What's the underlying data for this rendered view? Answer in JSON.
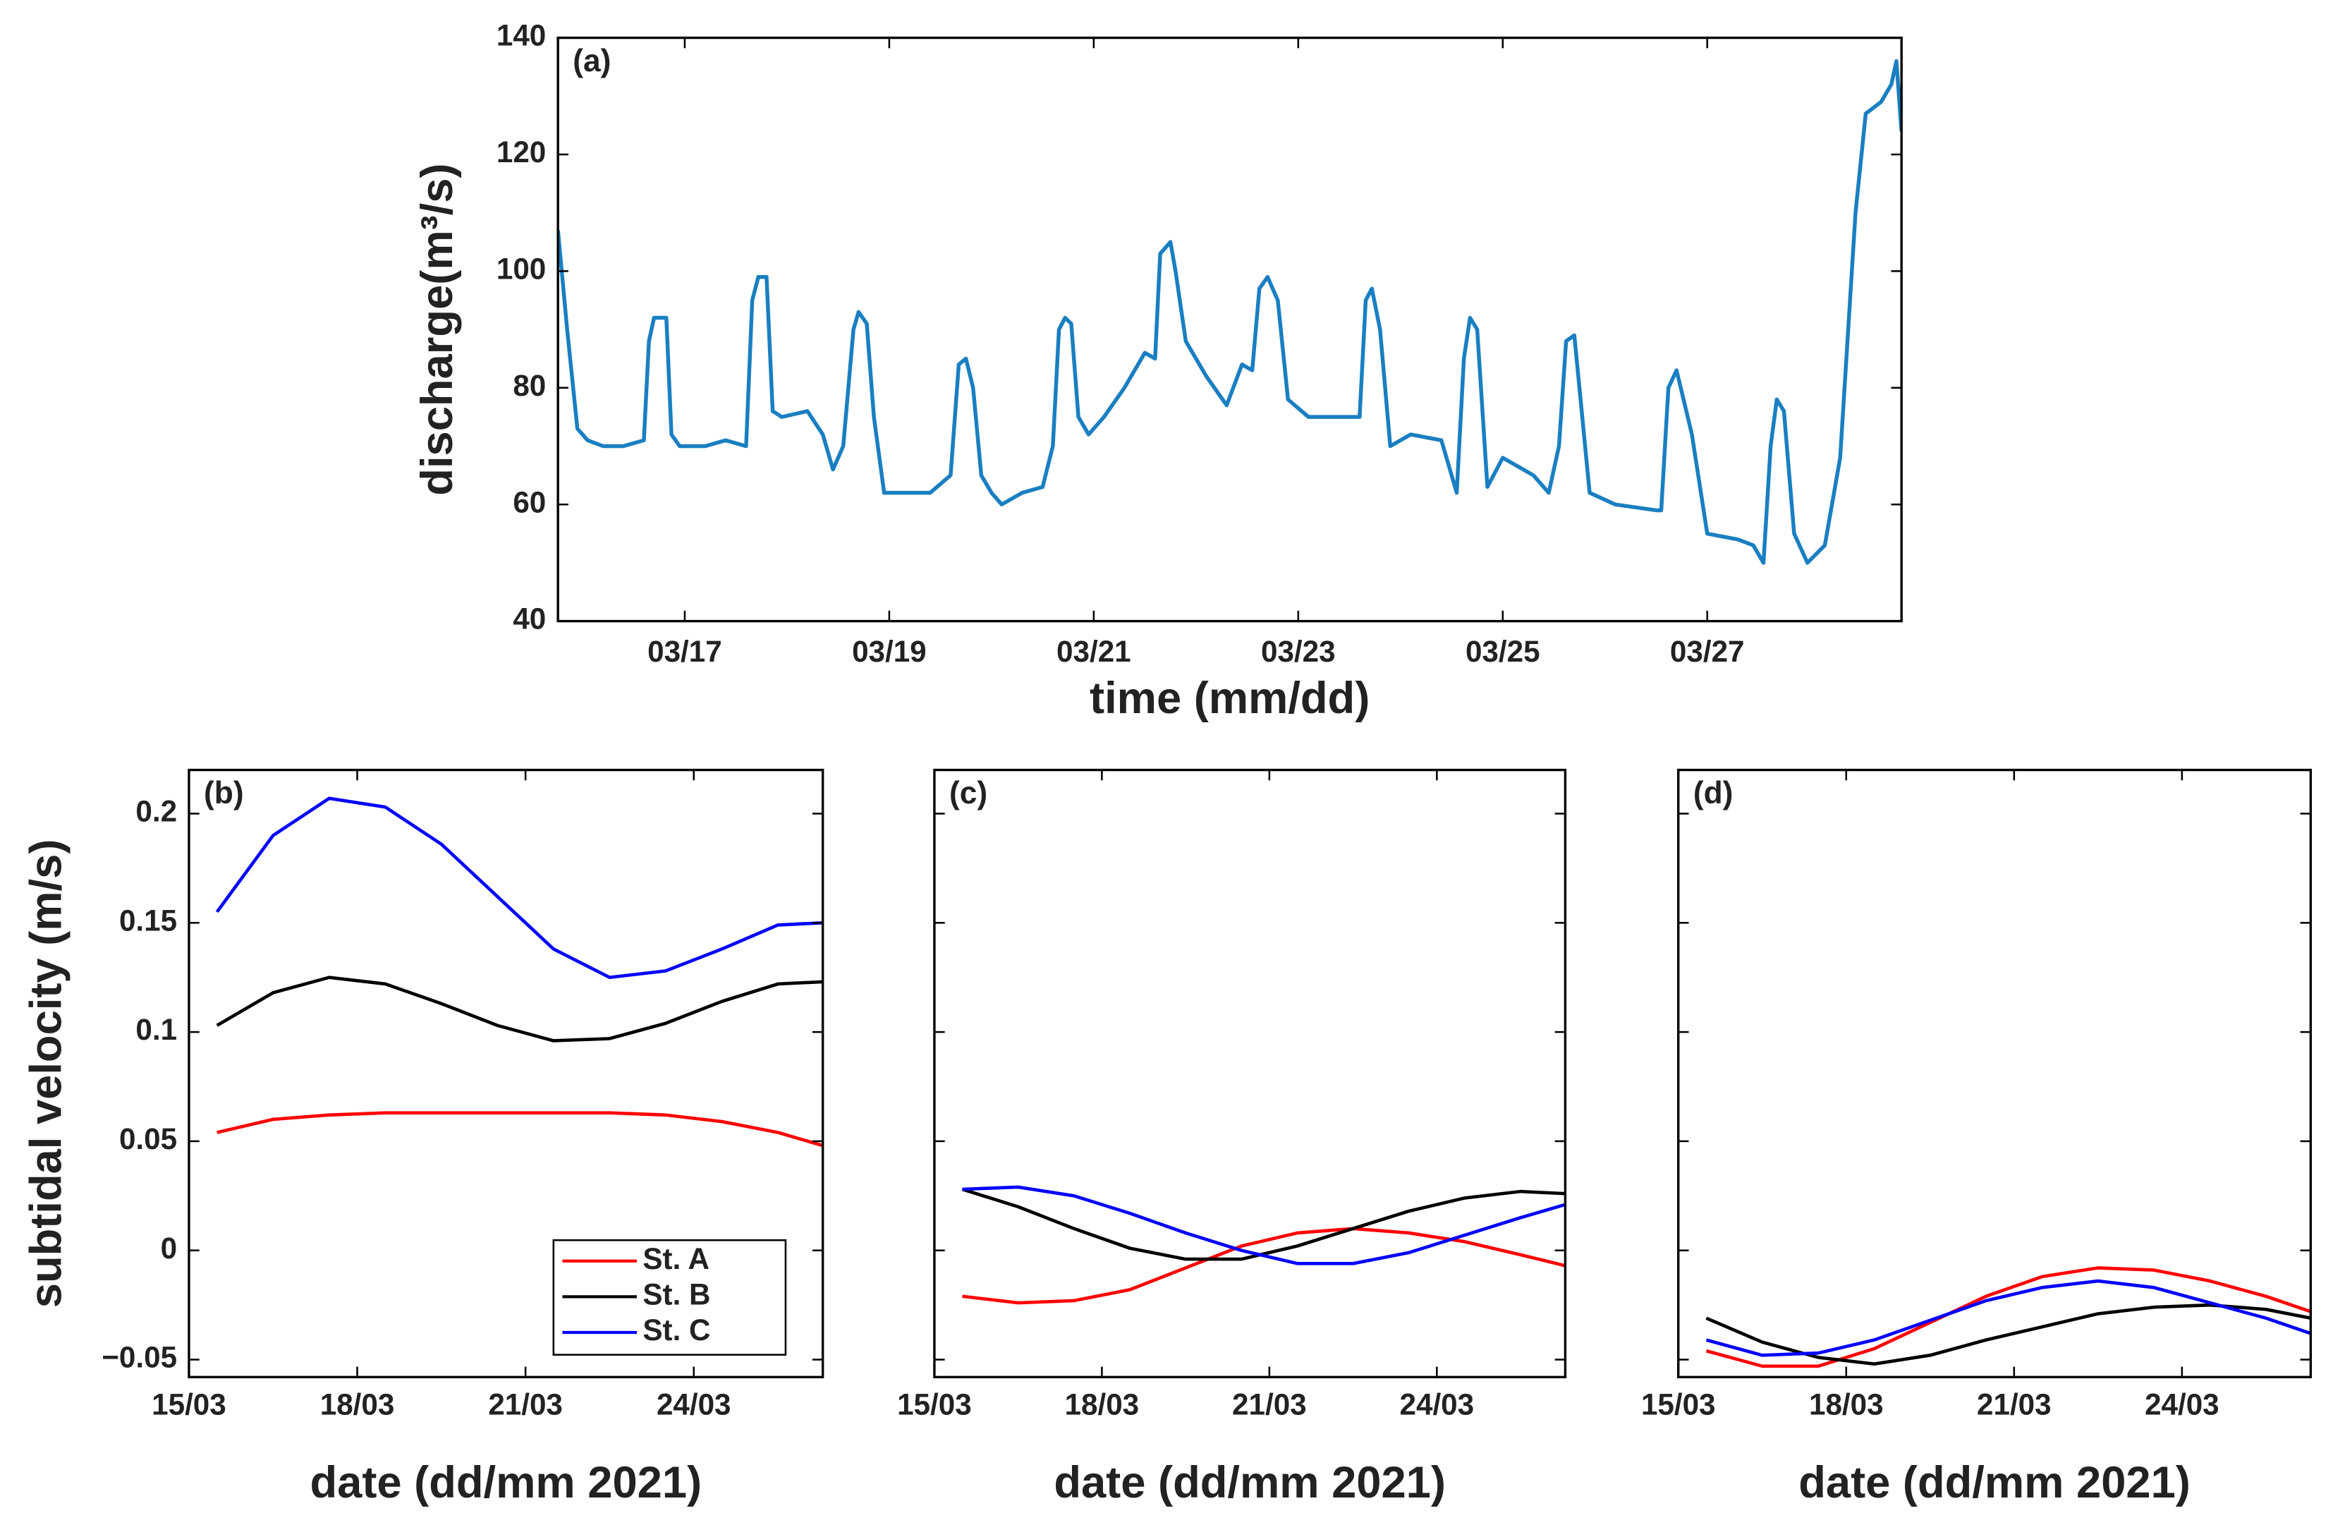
{
  "chart_data": [
    {
      "type": "line",
      "title": "(a)",
      "x_label": "time (mm/dd)",
      "y_label": "discharge(m³/s)",
      "color": "#1a7fc1",
      "x": [
        15.76,
        15.85,
        15.95,
        16.05,
        16.2,
        16.4,
        16.6,
        16.65,
        16.7,
        16.82,
        16.87,
        16.95,
        17.2,
        17.4,
        17.6,
        17.66,
        17.72,
        17.8,
        17.86,
        17.95,
        18.2,
        18.35,
        18.45,
        18.55,
        18.65,
        18.7,
        18.78,
        18.85,
        18.95,
        19.1,
        19.4,
        19.6,
        19.68,
        19.75,
        19.82,
        19.9,
        20.0,
        20.1,
        20.3,
        20.5,
        20.6,
        20.66,
        20.72,
        20.78,
        20.85,
        20.95,
        21.1,
        21.3,
        21.5,
        21.6,
        21.65,
        21.75,
        21.8,
        21.9,
        22.1,
        22.3,
        22.45,
        22.55,
        22.62,
        22.7,
        22.8,
        22.9,
        23.1,
        23.5,
        23.6,
        23.66,
        23.72,
        23.8,
        23.9,
        24.1,
        24.4,
        24.55,
        24.62,
        24.68,
        24.75,
        24.85,
        25.0,
        25.3,
        25.45,
        25.55,
        25.62,
        25.7,
        25.85,
        26.1,
        26.5,
        26.55,
        26.62,
        26.7,
        26.85,
        27.0,
        27.3,
        27.45,
        27.55,
        27.62,
        27.68,
        27.75,
        27.85,
        27.98,
        28.15,
        28.3,
        28.45,
        28.55,
        28.7,
        28.8,
        28.85,
        28.9
      ],
      "values": [
        107,
        90,
        73,
        71,
        70,
        70,
        71,
        88,
        92,
        92,
        72,
        70,
        70,
        71,
        70,
        95,
        99,
        99,
        76,
        75,
        76,
        72,
        66,
        70,
        90,
        93,
        91,
        75,
        62,
        62,
        62,
        65,
        84,
        85,
        80,
        65,
        62,
        60,
        62,
        63,
        70,
        90,
        92,
        91,
        75,
        72,
        75,
        80,
        86,
        85,
        103,
        105,
        100,
        88,
        82,
        77,
        84,
        83,
        97,
        99,
        95,
        78,
        75,
        75,
        75,
        95,
        97,
        90,
        70,
        72,
        71,
        62,
        85,
        92,
        90,
        63,
        68,
        65,
        62,
        70,
        88,
        89,
        62,
        60,
        59,
        59,
        80,
        83,
        72,
        55,
        54,
        53,
        50,
        70,
        78,
        76,
        55,
        50,
        53,
        68,
        110,
        127,
        129,
        132,
        136,
        124
      ],
      "xlim": [
        15.76,
        28.9
      ],
      "ylim": [
        40,
        140
      ],
      "xticks": [
        {
          "value": 17,
          "label": "03/17"
        },
        {
          "value": 19,
          "label": "03/19"
        },
        {
          "value": 21,
          "label": "03/21"
        },
        {
          "value": 23,
          "label": "03/23"
        },
        {
          "value": 25,
          "label": "03/25"
        },
        {
          "value": 27,
          "label": "03/27"
        }
      ],
      "yticks": [
        40,
        60,
        80,
        100,
        120,
        140
      ]
    },
    {
      "type": "line",
      "title": "(b)",
      "x_label": "date (dd/mm 2021)",
      "y_label": "subtidal velocity (m/s)",
      "legend": "lower right",
      "x": [
        15.5,
        16.5,
        17.5,
        18.5,
        19.5,
        20.5,
        21.5,
        22.5,
        23.5,
        24.5,
        25.5,
        26.3
      ],
      "series": [
        {
          "name": "St. A",
          "color": "#ff0000",
          "values": [
            0.054,
            0.06,
            0.062,
            0.063,
            0.063,
            0.063,
            0.063,
            0.063,
            0.062,
            0.059,
            0.054,
            0.048
          ]
        },
        {
          "name": "St. B",
          "color": "#000000",
          "values": [
            0.103,
            0.118,
            0.125,
            0.122,
            0.113,
            0.103,
            0.096,
            0.097,
            0.104,
            0.114,
            0.122,
            0.123
          ]
        },
        {
          "name": "St. C",
          "color": "#0000ff",
          "values": [
            0.155,
            0.19,
            0.207,
            0.203,
            0.186,
            0.162,
            0.138,
            0.125,
            0.128,
            0.138,
            0.149,
            0.15
          ]
        }
      ],
      "xlim": [
        15,
        26.3
      ],
      "ylim": [
        -0.058,
        0.22
      ],
      "xticks": [
        {
          "value": 15,
          "label": "15/03"
        },
        {
          "value": 18,
          "label": "18/03"
        },
        {
          "value": 21,
          "label": "21/03"
        },
        {
          "value": 24,
          "label": "24/03"
        }
      ],
      "yticks": [
        {
          "value": -0.05,
          "label": "−0.05"
        },
        0,
        0.05,
        0.1,
        0.15,
        0.2
      ]
    },
    {
      "type": "line",
      "title": "(c)",
      "x_label": "date (dd/mm 2021)",
      "x": [
        15.5,
        16.5,
        17.5,
        18.5,
        19.5,
        20.5,
        21.5,
        22.5,
        23.5,
        24.5,
        25.5,
        26.3
      ],
      "series": [
        {
          "color": "#ff0000",
          "values": [
            -0.021,
            -0.024,
            -0.023,
            -0.018,
            -0.008,
            0.002,
            0.008,
            0.01,
            0.008,
            0.004,
            -0.002,
            -0.007
          ]
        },
        {
          "color": "#000000",
          "values": [
            0.028,
            0.02,
            0.01,
            0.001,
            -0.004,
            -0.004,
            0.002,
            0.01,
            0.018,
            0.024,
            0.027,
            0.026
          ]
        },
        {
          "color": "#0000ff",
          "values": [
            0.028,
            0.029,
            0.025,
            0.017,
            0.008,
            0.0,
            -0.006,
            -0.006,
            -0.001,
            0.007,
            0.015,
            0.021
          ]
        }
      ],
      "xlim": [
        15,
        26.3
      ],
      "ylim": [
        -0.058,
        0.22
      ],
      "xticks": [
        {
          "value": 15,
          "label": "15/03"
        },
        {
          "value": 18,
          "label": "18/03"
        },
        {
          "value": 21,
          "label": "21/03"
        },
        {
          "value": 24,
          "label": "24/03"
        }
      ]
    },
    {
      "type": "line",
      "title": "(d)",
      "x_label": "date (dd/mm 2021)",
      "x": [
        15.5,
        16.5,
        17.5,
        18.5,
        19.5,
        20.5,
        21.5,
        22.5,
        23.5,
        24.5,
        25.5,
        26.3
      ],
      "series": [
        {
          "color": "#ff0000",
          "values": [
            -0.046,
            -0.053,
            -0.053,
            -0.045,
            -0.033,
            -0.021,
            -0.012,
            -0.008,
            -0.009,
            -0.014,
            -0.021,
            -0.028
          ]
        },
        {
          "color": "#000000",
          "values": [
            -0.031,
            -0.042,
            -0.049,
            -0.052,
            -0.048,
            -0.041,
            -0.035,
            -0.029,
            -0.026,
            -0.025,
            -0.027,
            -0.031
          ]
        },
        {
          "color": "#0000ff",
          "values": [
            -0.041,
            -0.048,
            -0.047,
            -0.041,
            -0.032,
            -0.023,
            -0.017,
            -0.014,
            -0.017,
            -0.024,
            -0.031,
            -0.038
          ]
        }
      ],
      "xlim": [
        15,
        26.3
      ],
      "ylim": [
        -0.058,
        0.22
      ],
      "xticks": [
        {
          "value": 15,
          "label": "15/03"
        },
        {
          "value": 18,
          "label": "18/03"
        },
        {
          "value": 21,
          "label": "21/03"
        },
        {
          "value": 24,
          "label": "24/03"
        }
      ]
    }
  ]
}
